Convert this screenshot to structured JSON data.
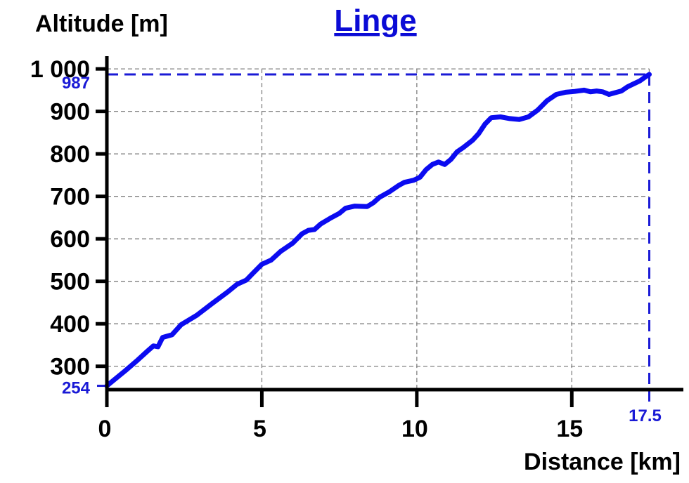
{
  "chart_data": {
    "type": "line",
    "title": "Linge",
    "xlabel": "Distance [km]",
    "ylabel": "Altitude [m]",
    "xlim": [
      0,
      18.6
    ],
    "ylim": [
      245,
      1030
    ],
    "x_ticks": [
      {
        "value": 0,
        "label": "0"
      },
      {
        "value": 5,
        "label": "5"
      },
      {
        "value": 10,
        "label": "10"
      },
      {
        "value": 15,
        "label": "15"
      }
    ],
    "y_ticks": [
      {
        "value": 300,
        "label": "300"
      },
      {
        "value": 400,
        "label": "400"
      },
      {
        "value": 500,
        "label": "500"
      },
      {
        "value": 600,
        "label": "600"
      },
      {
        "value": 700,
        "label": "700"
      },
      {
        "value": 800,
        "label": "800"
      },
      {
        "value": 900,
        "label": "900"
      },
      {
        "value": 1000,
        "label": "1 000"
      }
    ],
    "grid": true,
    "colors": {
      "series": "#0b0bf0",
      "title": "#0b0bd6",
      "markers": "#1a1ad6"
    },
    "markers": {
      "start_altitude": {
        "value": 254,
        "label": "254"
      },
      "end_altitude": {
        "value": 987,
        "label": "987"
      },
      "end_distance": {
        "value": 17.5,
        "label": "17.5"
      }
    },
    "series": [
      {
        "x": [
          0,
          0.3,
          0.6,
          1.0,
          1.3,
          1.5,
          1.65,
          1.8,
          2.1,
          2.4,
          2.9,
          3.4,
          3.9,
          4.2,
          4.5,
          4.7,
          5.0,
          5.3,
          5.6,
          6.0,
          6.3,
          6.5,
          6.7,
          6.9,
          7.2,
          7.5,
          7.7,
          8.0,
          8.4,
          8.6,
          8.8,
          9.1,
          9.4,
          9.6,
          9.9,
          10.1,
          10.3,
          10.5,
          10.7,
          10.9,
          11.1,
          11.3,
          11.5,
          11.8,
          12.0,
          12.2,
          12.4,
          12.7,
          13.0,
          13.3,
          13.6,
          13.9,
          14.2,
          14.5,
          14.8,
          15.1,
          15.4,
          15.6,
          15.8,
          16.0,
          16.2,
          16.4,
          16.6,
          16.8,
          17.0,
          17.2,
          17.35,
          17.5
        ],
        "y": [
          254,
          272,
          290,
          315,
          335,
          348,
          346,
          368,
          374,
          398,
          420,
          448,
          475,
          493,
          503,
          518,
          540,
          550,
          570,
          590,
          612,
          620,
          622,
          635,
          648,
          660,
          672,
          677,
          676,
          685,
          698,
          710,
          725,
          733,
          738,
          745,
          763,
          775,
          781,
          775,
          787,
          805,
          815,
          832,
          848,
          870,
          885,
          887,
          883,
          881,
          887,
          903,
          925,
          940,
          945,
          947,
          950,
          946,
          948,
          946,
          940,
          944,
          948,
          958,
          965,
          972,
          980,
          987
        ]
      }
    ]
  }
}
